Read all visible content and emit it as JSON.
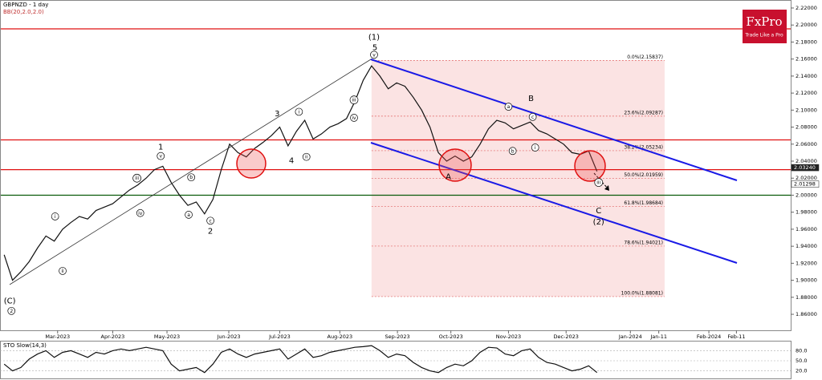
{
  "chart_data": {
    "type": "line",
    "title": "GBPNZD - 1 day",
    "subtitle": "BB(20,2.0,2.0)",
    "brand": "FxPro",
    "tagline": "Trade Like a Pro",
    "xlim": [
      -0.5,
      94.2
    ],
    "ylim": [
      1.8412,
      2.2294
    ],
    "xticks": [
      {
        "value": 6.4,
        "label": "Mar-2023"
      },
      {
        "value": 13,
        "label": "Apr-2023"
      },
      {
        "value": 19.5,
        "label": "May-2023"
      },
      {
        "value": 26.9,
        "label": "Jun-2023"
      },
      {
        "value": 33,
        "label": "Jul-2023"
      },
      {
        "value": 40.2,
        "label": "Aug-2023"
      },
      {
        "value": 47.1,
        "label": "Sep-2023"
      },
      {
        "value": 53.5,
        "label": "Oct-2023"
      },
      {
        "value": 60.4,
        "label": "Nov-2023"
      },
      {
        "value": 67.3,
        "label": "Dec-2023"
      },
      {
        "value": 75,
        "label": "Jan-2024"
      },
      {
        "value": 78.4,
        "label": "Jan-11"
      },
      {
        "value": 84.4,
        "label": "Feb-2024"
      },
      {
        "value": 87.7,
        "label": "Feb-11"
      }
    ],
    "yticks": [
      {
        "value": 1.86,
        "label": "1.86000"
      },
      {
        "value": 1.88,
        "label": "1.88000"
      },
      {
        "value": 1.9,
        "label": "1.90000"
      },
      {
        "value": 1.92,
        "label": "1.92000"
      },
      {
        "value": 1.94,
        "label": "1.94000"
      },
      {
        "value": 1.96,
        "label": "1.96000"
      },
      {
        "value": 1.98,
        "label": "1.98000"
      },
      {
        "value": 2.0,
        "label": "2.00000"
      },
      {
        "value": 2.02,
        "label": "2.02000"
      },
      {
        "value": 2.04,
        "label": "2.04000"
      },
      {
        "value": 2.06,
        "label": "2.06000"
      },
      {
        "value": 2.08,
        "label": "2.08000"
      },
      {
        "value": 2.1,
        "label": "2.10000"
      },
      {
        "value": 2.12,
        "label": "2.12000"
      },
      {
        "value": 2.14,
        "label": "2.14000"
      },
      {
        "value": 2.16,
        "label": "2.16000"
      },
      {
        "value": 2.18,
        "label": "2.18000"
      },
      {
        "value": 2.2,
        "label": "2.20000"
      },
      {
        "value": 2.22,
        "label": "2.22000"
      }
    ],
    "series": [
      {
        "name": "GBPNZD",
        "color": "#111111",
        "values": [
          1.93,
          1.9,
          1.91,
          1.922,
          1.938,
          1.952,
          1.946,
          1.96,
          1.968,
          1.975,
          1.972,
          1.982,
          1.986,
          1.99,
          1.998,
          2.006,
          2.012,
          2.02,
          2.03,
          2.034,
          2.015,
          2.0,
          1.988,
          1.992,
          1.978,
          1.995,
          2.03,
          2.06,
          2.05,
          2.045,
          2.055,
          2.062,
          2.07,
          2.08,
          2.058,
          2.075,
          2.088,
          2.066,
          2.072,
          2.08,
          2.084,
          2.09,
          2.11,
          2.135,
          2.152,
          2.14,
          2.125,
          2.132,
          2.128,
          2.115,
          2.1,
          2.08,
          2.05,
          2.04,
          2.046,
          2.04,
          2.045,
          2.06,
          2.078,
          2.088,
          2.085,
          2.078,
          2.082,
          2.086,
          2.076,
          2.072,
          2.066,
          2.06,
          2.05,
          2.048,
          2.052,
          2.028
        ]
      }
    ],
    "levels": [
      {
        "value": 2.1955,
        "color": "#e01010"
      },
      {
        "value": 2.065,
        "color": "#e01010"
      },
      {
        "value": 2.03,
        "color": "#e01010"
      },
      {
        "value": 2.0,
        "color": "#0a5a0a"
      }
    ],
    "price_markers": [
      {
        "value": 2.0324,
        "label": "2.03240"
      },
      {
        "value": 2.01298,
        "label": "2.01298"
      }
    ],
    "fib_x": [
      44,
      79.1
    ],
    "fib_levels": [
      {
        "value": 2.15837,
        "label": "0.0%(2.15837)"
      },
      {
        "value": 2.09287,
        "label": "23.6%(2.09287)"
      },
      {
        "value": 2.05234,
        "label": "38.2%(2.05234)"
      },
      {
        "value": 2.01959,
        "label": "50.0%(2.01959)"
      },
      {
        "value": 1.98684,
        "label": "61.8%(1.98684)"
      },
      {
        "value": 1.94021,
        "label": "78.6%(1.94021)"
      },
      {
        "value": 1.88081,
        "label": "100.0%(1.88081)"
      }
    ],
    "annotations": [
      {
        "text": "(C)",
        "x": 0.67,
        "y": 1.876
      },
      {
        "text": "2",
        "x": 0.87,
        "y": 1.864,
        "circled": true
      },
      {
        "text": "1",
        "x": 18.75,
        "y": 2.057
      },
      {
        "text": "2",
        "x": 24.7,
        "y": 1.958
      },
      {
        "text": "3",
        "x": 32.7,
        "y": 2.096
      },
      {
        "text": "4",
        "x": 34.4,
        "y": 2.041
      },
      {
        "text": "(1)",
        "x": 44.3,
        "y": 2.186
      },
      {
        "text": "5",
        "x": 44.4,
        "y": 2.174
      },
      {
        "text": "A",
        "x": 53.2,
        "y": 2.022
      },
      {
        "text": "B",
        "x": 63.1,
        "y": 2.114
      },
      {
        "text": "C",
        "x": 71.2,
        "y": 1.982
      },
      {
        "text": "(2)",
        "x": 71.2,
        "y": 1.969
      },
      {
        "text": "i",
        "x": 6.1,
        "y": 1.975,
        "circled": true
      },
      {
        "text": "ii",
        "x": 7.0,
        "y": 1.911,
        "circled": true
      },
      {
        "text": "iii",
        "x": 15.9,
        "y": 2.02,
        "circled": true
      },
      {
        "text": "iv",
        "x": 16.3,
        "y": 1.979,
        "circled": true
      },
      {
        "text": "v",
        "x": 18.75,
        "y": 2.046,
        "circled": true
      },
      {
        "text": "a",
        "x": 22.1,
        "y": 1.977,
        "circled": true
      },
      {
        "text": "b",
        "x": 22.4,
        "y": 2.021,
        "circled": true
      },
      {
        "text": "c",
        "x": 24.7,
        "y": 1.97,
        "circled": true
      },
      {
        "text": "i",
        "x": 35.3,
        "y": 2.098,
        "circled": true
      },
      {
        "text": "ii",
        "x": 36.2,
        "y": 2.045,
        "circled": true
      },
      {
        "text": "iii",
        "x": 41.9,
        "y": 2.112,
        "circled": true
      },
      {
        "text": "iv",
        "x": 41.9,
        "y": 2.091,
        "circled": true
      },
      {
        "text": "v",
        "x": 44.3,
        "y": 2.165,
        "circled": true
      },
      {
        "text": "a",
        "x": 60.4,
        "y": 2.104,
        "circled": true
      },
      {
        "text": "b",
        "x": 60.9,
        "y": 2.052,
        "circled": true
      },
      {
        "text": "c",
        "x": 63.3,
        "y": 2.092,
        "circled": true
      },
      {
        "text": "i",
        "x": 63.6,
        "y": 2.056,
        "circled": true
      },
      {
        "text": "iii",
        "x": 71.2,
        "y": 2.015,
        "circled": true
      }
    ],
    "oscillator": {
      "name": "STO Slow(14,3)",
      "ylim": [
        0,
        100
      ],
      "yticks": [
        {
          "value": 80,
          "label": "80.0"
        },
        {
          "value": 50,
          "label": "50.0"
        },
        {
          "value": 20,
          "label": "20.0"
        }
      ],
      "color": "#111111",
      "values": [
        40,
        20,
        30,
        55,
        70,
        80,
        60,
        75,
        80,
        70,
        60,
        75,
        70,
        80,
        85,
        80,
        85,
        90,
        85,
        80,
        40,
        20,
        25,
        30,
        15,
        40,
        75,
        85,
        70,
        60,
        70,
        75,
        80,
        85,
        55,
        70,
        85,
        60,
        65,
        75,
        80,
        85,
        90,
        92,
        95,
        80,
        60,
        70,
        65,
        45,
        30,
        20,
        15,
        30,
        40,
        35,
        50,
        75,
        90,
        88,
        70,
        65,
        80,
        85,
        60,
        45,
        40,
        30,
        20,
        25,
        35,
        15
      ]
    }
  }
}
